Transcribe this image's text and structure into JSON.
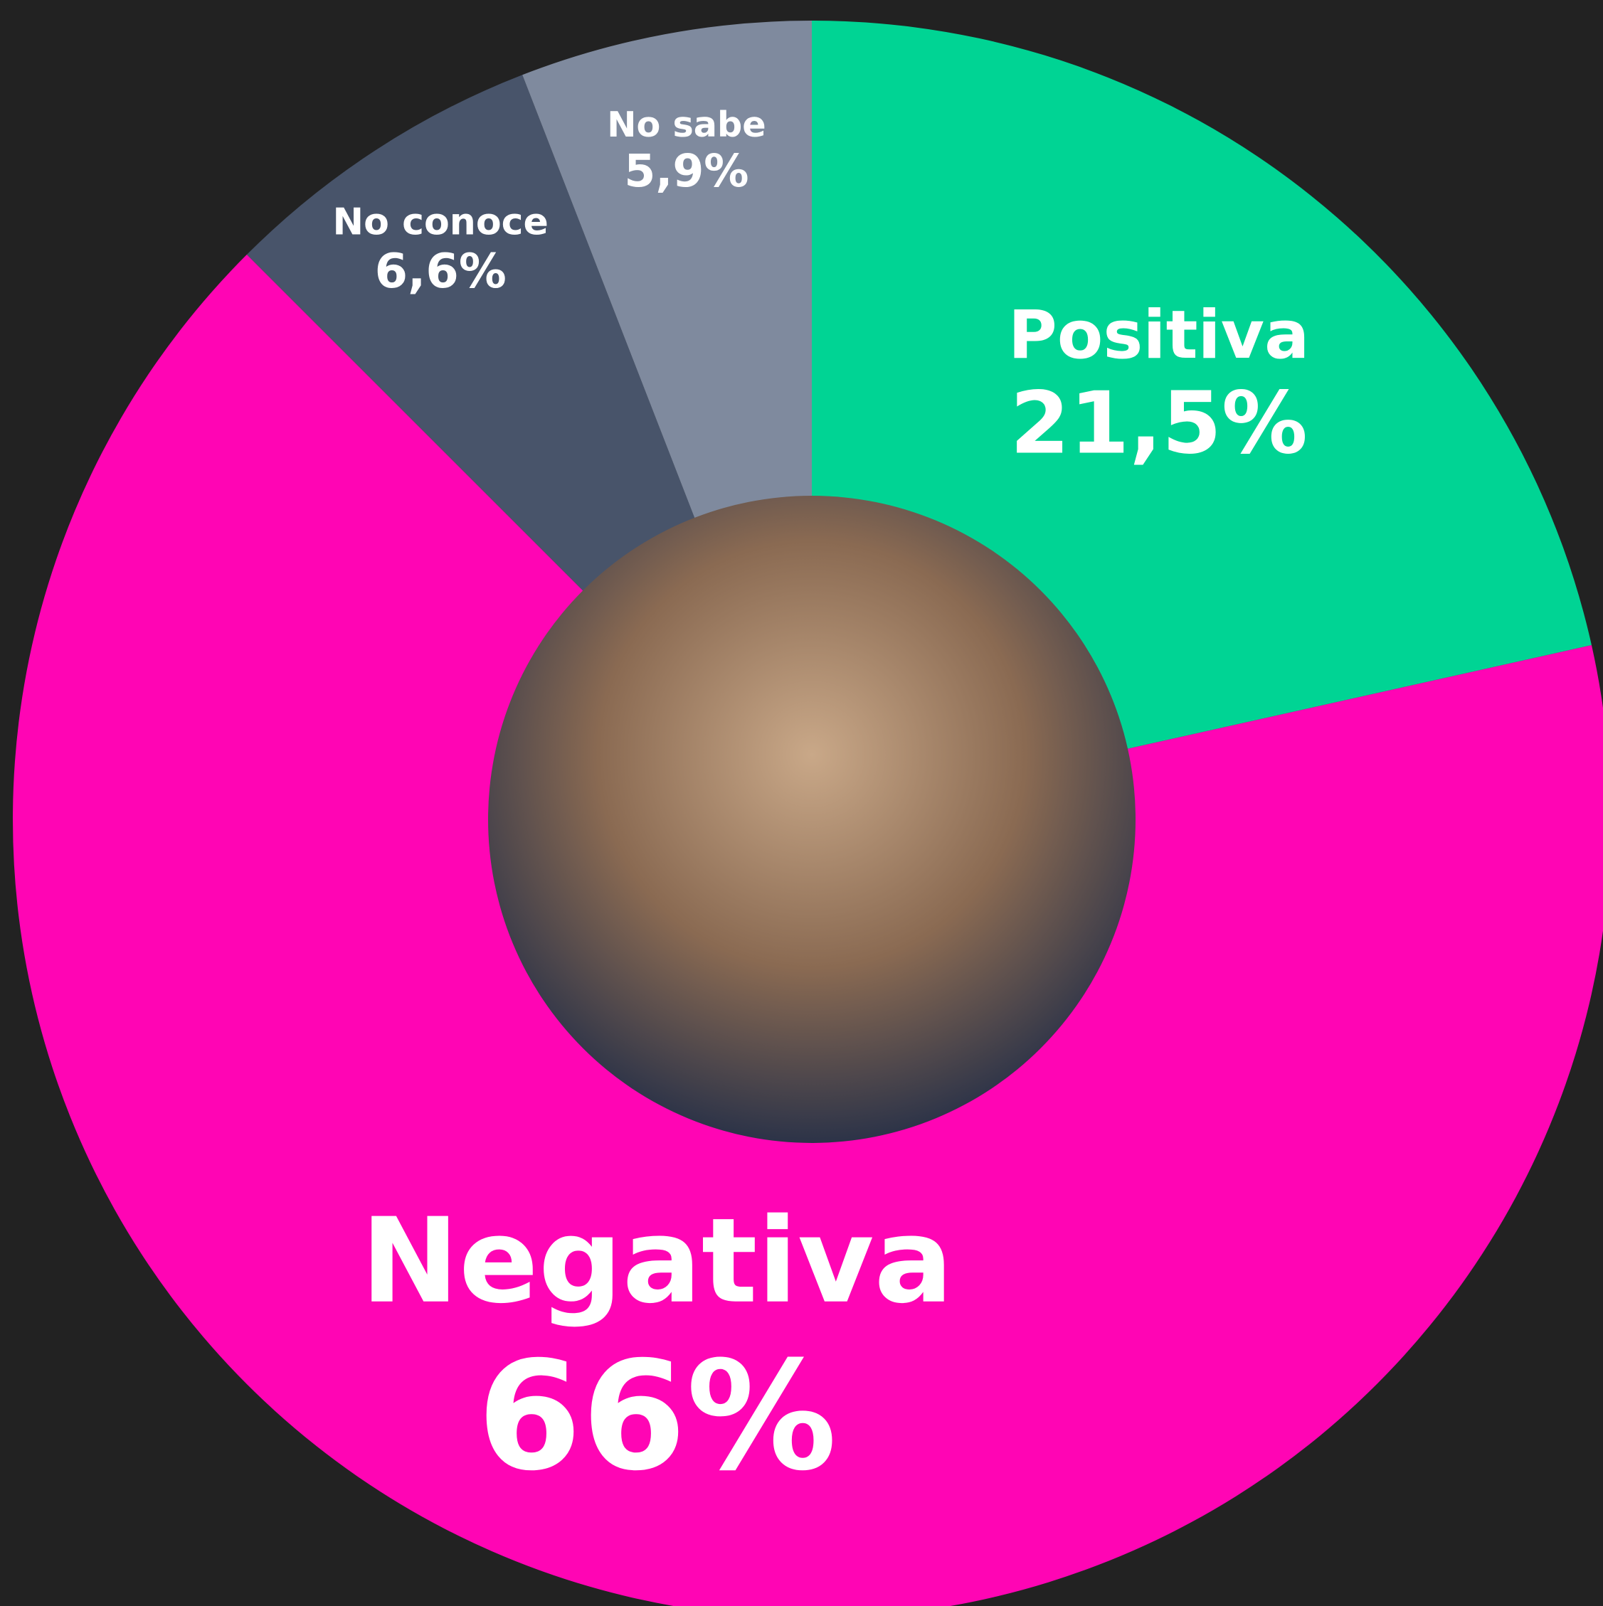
{
  "chart_data": {
    "type": "donut",
    "categories": [
      "Positiva",
      "Negativa",
      "No conoce",
      "No sabe"
    ],
    "values": [
      21.5,
      66,
      6.6,
      5.9
    ],
    "value_labels": [
      "21,5%",
      "66%",
      "6,6%",
      "5,9%"
    ],
    "colors": [
      "#00d494",
      "#ff05b4",
      "#48546a",
      "#7f8a9e"
    ]
  }
}
